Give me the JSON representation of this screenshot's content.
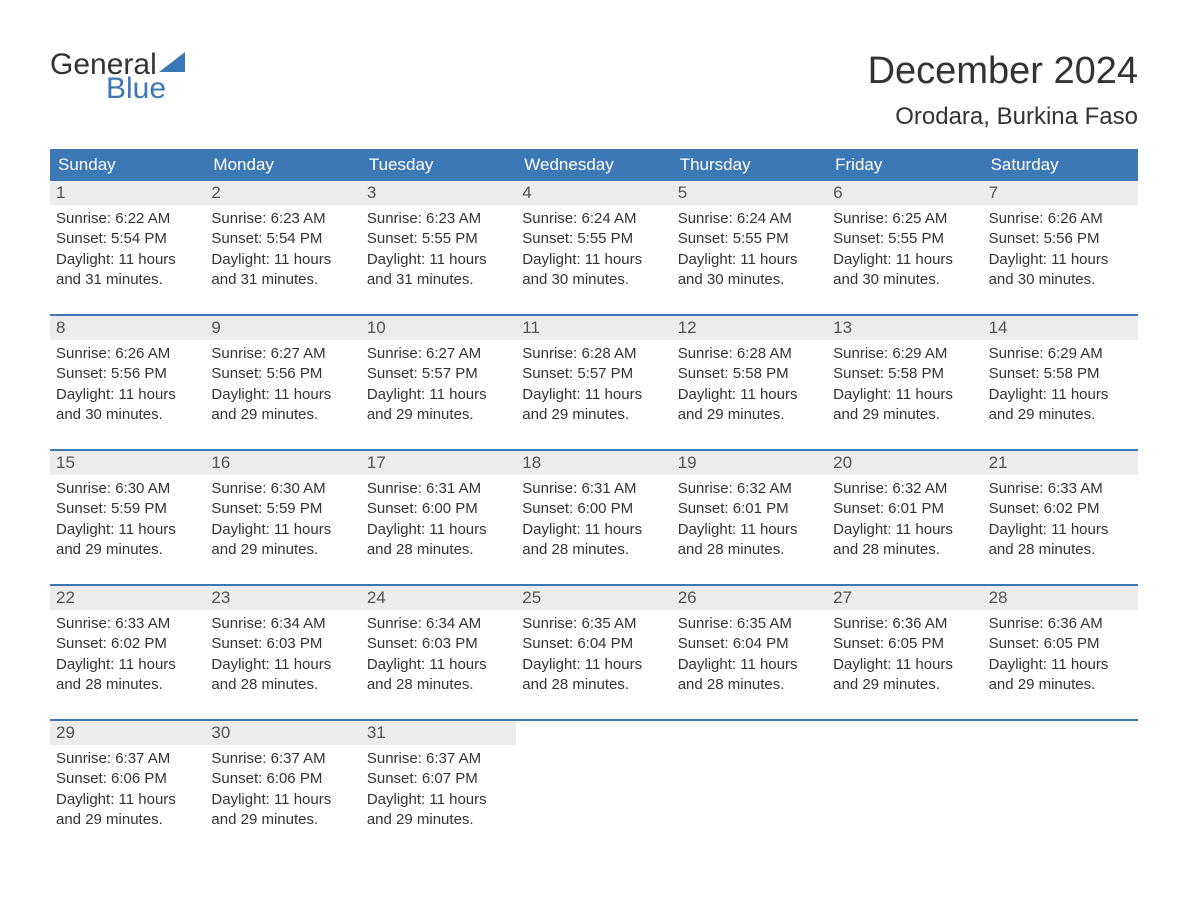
{
  "brand": {
    "word1": "General",
    "word2": "Blue",
    "color_general": "#333333",
    "color_blue": "#3d78b6",
    "sail_color": "#3d78b6",
    "font_size_pt": 30
  },
  "title": {
    "month": "December 2024",
    "location": "Orodara, Burkina Faso",
    "month_fontsize": 38,
    "location_fontsize": 24,
    "color": "#333333"
  },
  "calendar": {
    "type": "table",
    "header_bg": "#3d78b6",
    "header_fg": "#ffffff",
    "row_divider_color": "#3d78b6",
    "daynum_bg": "#ececec",
    "body_fontsize": 15,
    "header_fontsize": 17,
    "weekdays": [
      "Sunday",
      "Monday",
      "Tuesday",
      "Wednesday",
      "Thursday",
      "Friday",
      "Saturday"
    ],
    "weeks": [
      [
        {
          "n": "1",
          "sr": "Sunrise: 6:22 AM",
          "ss": "Sunset: 5:54 PM",
          "dl1": "Daylight: 11 hours",
          "dl2": "and 31 minutes."
        },
        {
          "n": "2",
          "sr": "Sunrise: 6:23 AM",
          "ss": "Sunset: 5:54 PM",
          "dl1": "Daylight: 11 hours",
          "dl2": "and 31 minutes."
        },
        {
          "n": "3",
          "sr": "Sunrise: 6:23 AM",
          "ss": "Sunset: 5:55 PM",
          "dl1": "Daylight: 11 hours",
          "dl2": "and 31 minutes."
        },
        {
          "n": "4",
          "sr": "Sunrise: 6:24 AM",
          "ss": "Sunset: 5:55 PM",
          "dl1": "Daylight: 11 hours",
          "dl2": "and 30 minutes."
        },
        {
          "n": "5",
          "sr": "Sunrise: 6:24 AM",
          "ss": "Sunset: 5:55 PM",
          "dl1": "Daylight: 11 hours",
          "dl2": "and 30 minutes."
        },
        {
          "n": "6",
          "sr": "Sunrise: 6:25 AM",
          "ss": "Sunset: 5:55 PM",
          "dl1": "Daylight: 11 hours",
          "dl2": "and 30 minutes."
        },
        {
          "n": "7",
          "sr": "Sunrise: 6:26 AM",
          "ss": "Sunset: 5:56 PM",
          "dl1": "Daylight: 11 hours",
          "dl2": "and 30 minutes."
        }
      ],
      [
        {
          "n": "8",
          "sr": "Sunrise: 6:26 AM",
          "ss": "Sunset: 5:56 PM",
          "dl1": "Daylight: 11 hours",
          "dl2": "and 30 minutes."
        },
        {
          "n": "9",
          "sr": "Sunrise: 6:27 AM",
          "ss": "Sunset: 5:56 PM",
          "dl1": "Daylight: 11 hours",
          "dl2": "and 29 minutes."
        },
        {
          "n": "10",
          "sr": "Sunrise: 6:27 AM",
          "ss": "Sunset: 5:57 PM",
          "dl1": "Daylight: 11 hours",
          "dl2": "and 29 minutes."
        },
        {
          "n": "11",
          "sr": "Sunrise: 6:28 AM",
          "ss": "Sunset: 5:57 PM",
          "dl1": "Daylight: 11 hours",
          "dl2": "and 29 minutes."
        },
        {
          "n": "12",
          "sr": "Sunrise: 6:28 AM",
          "ss": "Sunset: 5:58 PM",
          "dl1": "Daylight: 11 hours",
          "dl2": "and 29 minutes."
        },
        {
          "n": "13",
          "sr": "Sunrise: 6:29 AM",
          "ss": "Sunset: 5:58 PM",
          "dl1": "Daylight: 11 hours",
          "dl2": "and 29 minutes."
        },
        {
          "n": "14",
          "sr": "Sunrise: 6:29 AM",
          "ss": "Sunset: 5:58 PM",
          "dl1": "Daylight: 11 hours",
          "dl2": "and 29 minutes."
        }
      ],
      [
        {
          "n": "15",
          "sr": "Sunrise: 6:30 AM",
          "ss": "Sunset: 5:59 PM",
          "dl1": "Daylight: 11 hours",
          "dl2": "and 29 minutes."
        },
        {
          "n": "16",
          "sr": "Sunrise: 6:30 AM",
          "ss": "Sunset: 5:59 PM",
          "dl1": "Daylight: 11 hours",
          "dl2": "and 29 minutes."
        },
        {
          "n": "17",
          "sr": "Sunrise: 6:31 AM",
          "ss": "Sunset: 6:00 PM",
          "dl1": "Daylight: 11 hours",
          "dl2": "and 28 minutes."
        },
        {
          "n": "18",
          "sr": "Sunrise: 6:31 AM",
          "ss": "Sunset: 6:00 PM",
          "dl1": "Daylight: 11 hours",
          "dl2": "and 28 minutes."
        },
        {
          "n": "19",
          "sr": "Sunrise: 6:32 AM",
          "ss": "Sunset: 6:01 PM",
          "dl1": "Daylight: 11 hours",
          "dl2": "and 28 minutes."
        },
        {
          "n": "20",
          "sr": "Sunrise: 6:32 AM",
          "ss": "Sunset: 6:01 PM",
          "dl1": "Daylight: 11 hours",
          "dl2": "and 28 minutes."
        },
        {
          "n": "21",
          "sr": "Sunrise: 6:33 AM",
          "ss": "Sunset: 6:02 PM",
          "dl1": "Daylight: 11 hours",
          "dl2": "and 28 minutes."
        }
      ],
      [
        {
          "n": "22",
          "sr": "Sunrise: 6:33 AM",
          "ss": "Sunset: 6:02 PM",
          "dl1": "Daylight: 11 hours",
          "dl2": "and 28 minutes."
        },
        {
          "n": "23",
          "sr": "Sunrise: 6:34 AM",
          "ss": "Sunset: 6:03 PM",
          "dl1": "Daylight: 11 hours",
          "dl2": "and 28 minutes."
        },
        {
          "n": "24",
          "sr": "Sunrise: 6:34 AM",
          "ss": "Sunset: 6:03 PM",
          "dl1": "Daylight: 11 hours",
          "dl2": "and 28 minutes."
        },
        {
          "n": "25",
          "sr": "Sunrise: 6:35 AM",
          "ss": "Sunset: 6:04 PM",
          "dl1": "Daylight: 11 hours",
          "dl2": "and 28 minutes."
        },
        {
          "n": "26",
          "sr": "Sunrise: 6:35 AM",
          "ss": "Sunset: 6:04 PM",
          "dl1": "Daylight: 11 hours",
          "dl2": "and 28 minutes."
        },
        {
          "n": "27",
          "sr": "Sunrise: 6:36 AM",
          "ss": "Sunset: 6:05 PM",
          "dl1": "Daylight: 11 hours",
          "dl2": "and 29 minutes."
        },
        {
          "n": "28",
          "sr": "Sunrise: 6:36 AM",
          "ss": "Sunset: 6:05 PM",
          "dl1": "Daylight: 11 hours",
          "dl2": "and 29 minutes."
        }
      ],
      [
        {
          "n": "29",
          "sr": "Sunrise: 6:37 AM",
          "ss": "Sunset: 6:06 PM",
          "dl1": "Daylight: 11 hours",
          "dl2": "and 29 minutes."
        },
        {
          "n": "30",
          "sr": "Sunrise: 6:37 AM",
          "ss": "Sunset: 6:06 PM",
          "dl1": "Daylight: 11 hours",
          "dl2": "and 29 minutes."
        },
        {
          "n": "31",
          "sr": "Sunrise: 6:37 AM",
          "ss": "Sunset: 6:07 PM",
          "dl1": "Daylight: 11 hours",
          "dl2": "and 29 minutes."
        },
        null,
        null,
        null,
        null
      ]
    ]
  }
}
